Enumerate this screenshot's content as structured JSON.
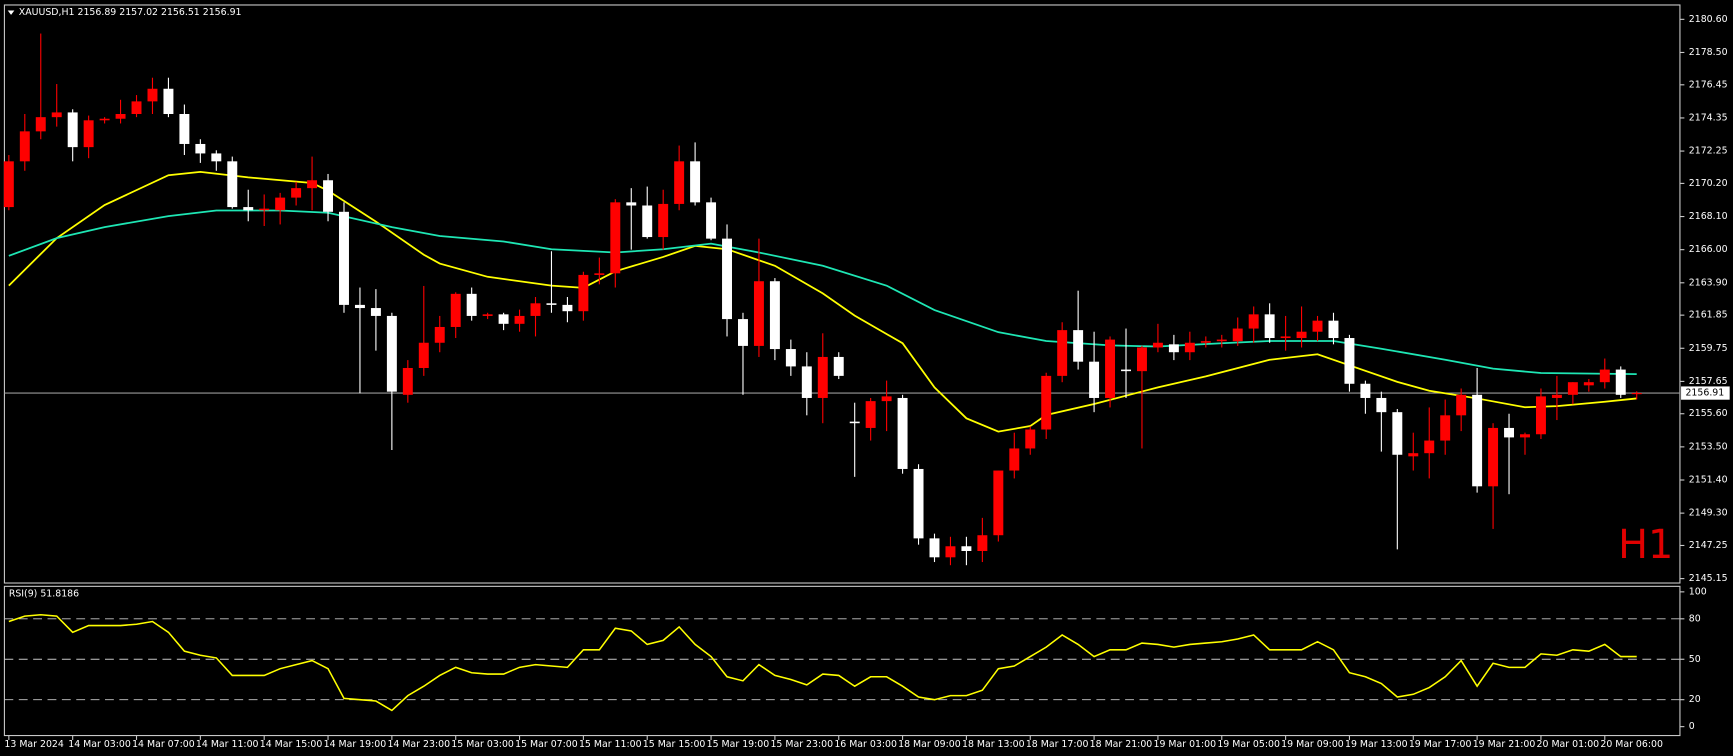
{
  "chart_data": [
    {
      "type": "candlestick",
      "title": "XAUUSD,H1  2156.89 2157.02 2156.51 2156.91",
      "timeframe_label": "H1",
      "categories": [
        "13 Mar 2024",
        null,
        null,
        null,
        "14 Mar 03:00",
        null,
        null,
        null,
        "14 Mar 07:00",
        null,
        null,
        null,
        "14 Mar 11:00",
        null,
        null,
        null,
        "14 Mar 15:00",
        null,
        null,
        null,
        "14 Mar 19:00",
        null,
        null,
        null,
        "14 Mar 23:00",
        null,
        null,
        null,
        "15 Mar 03:00",
        null,
        null,
        null,
        "15 Mar 07:00",
        null,
        null,
        null,
        "15 Mar 11:00",
        null,
        null,
        null,
        "15 Mar 15:00",
        null,
        null,
        null,
        "15 Mar 19:00",
        null,
        null,
        null,
        "15 Mar 23:00",
        null,
        null,
        null,
        "16 Mar 03:00",
        null,
        null,
        null,
        "18 Mar 09:00",
        null,
        null,
        null,
        "18 Mar 13:00",
        null,
        null,
        null,
        "18 Mar 17:00",
        null,
        null,
        null,
        "18 Mar 21:00",
        null,
        null,
        null,
        "19 Mar 01:00",
        null,
        null,
        null,
        "19 Mar 05:00",
        null,
        null,
        null,
        "19 Mar 09:00",
        null,
        null,
        null,
        "19 Mar 13:00",
        null,
        null,
        null,
        "19 Mar 17:00",
        null,
        null,
        null,
        "19 Mar 21:00",
        null,
        null,
        null,
        "20 Mar 01:00",
        null,
        null,
        null,
        "20 Mar 06:00",
        null,
        null
      ],
      "open": [
        2168.7,
        2171.6,
        2173.5,
        2174.4,
        2174.7,
        2172.5,
        2174.2,
        2174.3,
        2174.6,
        2175.4,
        2176.2,
        2174.6,
        2172.7,
        2172.1,
        2171.6,
        2168.7,
        2168.5,
        2168.5,
        2169.3,
        2169.9,
        2170.4,
        2168.4,
        2162.5,
        2162.3,
        2161.8,
        2156.8,
        2158.5,
        2160.1,
        2161.1,
        2163.2,
        2161.8,
        2161.9,
        2161.3,
        2161.8,
        2162.6,
        2162.5,
        2162.1,
        2164.4,
        2164.5,
        2169.0,
        2168.8,
        2166.8,
        2168.9,
        2171.6,
        2169.0,
        2166.7,
        2161.6,
        2159.9,
        2164.0,
        2159.7,
        2158.6,
        2156.6,
        2159.2,
        2155.1,
        2154.7,
        2156.4,
        2156.6,
        2152.1,
        2147.7,
        2146.5,
        2147.2,
        2146.9,
        2147.9,
        2152.0,
        2153.4,
        2154.6,
        2158.0,
        2160.9,
        2158.9,
        2156.6,
        2158.4,
        2158.3,
        2159.8,
        2160.0,
        2159.5,
        2160.1,
        2160.2,
        2160.2,
        2161.0,
        2161.9,
        2160.4,
        2160.4,
        2160.8,
        2161.5,
        2160.4,
        2157.5,
        2156.6,
        2155.7,
        2152.9,
        2153.1,
        2153.9,
        2155.5,
        2156.8,
        2151.0,
        2154.7,
        2154.1,
        2154.3,
        2156.6,
        2156.8,
        2157.4,
        2157.6,
        2158.4,
        2156.89
      ],
      "high": [
        2172.0,
        2174.6,
        2179.7,
        2176.5,
        2174.9,
        2174.5,
        2174.4,
        2175.5,
        2175.8,
        2176.9,
        2176.9,
        2175.2,
        2173.0,
        2172.3,
        2171.9,
        2169.8,
        2169.5,
        2169.6,
        2170.3,
        2171.9,
        2170.8,
        2169.0,
        2163.6,
        2163.5,
        2162.0,
        2159.0,
        2163.7,
        2161.8,
        2163.3,
        2163.6,
        2162.0,
        2162.0,
        2162.2,
        2163.0,
        2165.9,
        2163.0,
        2164.6,
        2165.5,
        2169.2,
        2169.9,
        2170.0,
        2169.8,
        2172.6,
        2172.8,
        2169.3,
        2167.6,
        2162.0,
        2166.7,
        2164.2,
        2160.3,
        2159.5,
        2160.7,
        2159.5,
        2156.3,
        2156.6,
        2157.7,
        2156.8,
        2152.4,
        2148.0,
        2147.8,
        2147.8,
        2149.0,
        2152.0,
        2154.4,
        2154.8,
        2158.2,
        2161.4,
        2163.4,
        2160.8,
        2160.5,
        2161.0,
        2159.9,
        2161.3,
        2160.6,
        2160.8,
        2160.5,
        2160.6,
        2161.7,
        2162.4,
        2162.6,
        2161.8,
        2162.4,
        2161.8,
        2162.0,
        2160.6,
        2157.7,
        2157.0,
        2155.9,
        2154.4,
        2156.0,
        2156.5,
        2157.2,
        2158.5,
        2155.0,
        2155.6,
        2154.4,
        2157.2,
        2158.0,
        2157.6,
        2157.8,
        2159.1,
        2158.6,
        2157.02
      ],
      "low": [
        2168.5,
        2171.0,
        2173.0,
        2173.8,
        2171.6,
        2171.8,
        2174.0,
        2174.0,
        2174.4,
        2174.6,
        2174.4,
        2172.0,
        2171.5,
        2171.0,
        2168.6,
        2167.8,
        2167.5,
        2167.6,
        2168.8,
        2168.5,
        2167.8,
        2162.0,
        2156.9,
        2159.6,
        2153.3,
        2156.3,
        2158.0,
        2159.5,
        2160.4,
        2161.5,
        2161.6,
        2160.9,
        2160.8,
        2160.5,
        2162.0,
        2161.4,
        2161.5,
        2163.8,
        2163.6,
        2166.0,
        2166.7,
        2166.0,
        2168.5,
        2168.8,
        2166.6,
        2160.5,
        2156.8,
        2159.2,
        2159.0,
        2158.0,
        2155.5,
        2155.0,
        2157.8,
        2151.6,
        2153.9,
        2154.5,
        2151.8,
        2147.3,
        2146.2,
        2146.0,
        2146.0,
        2146.2,
        2147.5,
        2151.5,
        2153.0,
        2154.0,
        2157.6,
        2158.4,
        2155.7,
        2156.0,
        2156.6,
        2153.4,
        2159.5,
        2159.0,
        2159.0,
        2159.8,
        2159.8,
        2159.9,
        2160.1,
        2160.1,
        2159.6,
        2159.8,
        2160.2,
        2160.0,
        2157.0,
        2155.6,
        2153.2,
        2147.0,
        2152.0,
        2151.5,
        2153.0,
        2154.5,
        2150.6,
        2148.3,
        2150.5,
        2153.0,
        2154.0,
        2155.2,
        2156.2,
        2157.0,
        2157.2,
        2156.6,
        2156.51
      ],
      "close": [
        2171.6,
        2173.5,
        2174.4,
        2174.7,
        2172.5,
        2174.2,
        2174.3,
        2174.6,
        2175.4,
        2176.2,
        2174.6,
        2172.7,
        2172.1,
        2171.6,
        2168.7,
        2168.5,
        2168.6,
        2169.3,
        2169.9,
        2170.4,
        2168.4,
        2162.5,
        2162.3,
        2161.8,
        2157.0,
        2158.5,
        2160.1,
        2161.1,
        2163.2,
        2161.8,
        2161.9,
        2161.3,
        2161.8,
        2162.6,
        2162.5,
        2162.1,
        2164.4,
        2164.5,
        2169.0,
        2168.8,
        2166.8,
        2168.9,
        2171.6,
        2169.0,
        2166.7,
        2161.6,
        2159.9,
        2164.0,
        2159.7,
        2158.6,
        2156.6,
        2159.2,
        2158.0,
        2155.0,
        2156.4,
        2156.7,
        2152.1,
        2147.7,
        2146.5,
        2147.2,
        2146.9,
        2147.9,
        2152.0,
        2153.4,
        2154.6,
        2158.0,
        2160.9,
        2158.9,
        2156.6,
        2160.3,
        2158.3,
        2159.8,
        2160.1,
        2159.5,
        2160.1,
        2160.2,
        2160.3,
        2161.0,
        2161.9,
        2160.4,
        2160.5,
        2160.8,
        2161.5,
        2160.4,
        2157.5,
        2156.6,
        2155.7,
        2153.0,
        2153.1,
        2153.9,
        2155.5,
        2156.8,
        2151.0,
        2154.7,
        2154.1,
        2154.3,
        2156.7,
        2156.8,
        2157.6,
        2157.6,
        2158.4,
        2156.8,
        2156.91
      ],
      "up_color": "#ff0000",
      "down_color": "#ffffff",
      "overlays": [
        {
          "color": "#ffff00",
          "x": [
            0,
            3,
            6,
            10,
            12,
            15,
            19,
            20,
            23,
            26,
            27,
            30,
            34,
            36,
            38,
            41,
            43,
            45,
            48,
            51,
            53,
            56,
            58,
            60,
            62,
            64,
            65,
            68,
            72,
            75,
            79,
            82,
            84,
            87,
            89,
            92,
            95,
            97,
            100,
            102
          ],
          "values": [
            2163.72,
            2166.73,
            2168.83,
            2170.72,
            2170.93,
            2170.58,
            2170.23,
            2169.74,
            2167.78,
            2165.68,
            2165.12,
            2164.28,
            2163.72,
            2163.58,
            2164.63,
            2165.54,
            2166.24,
            2166.03,
            2164.98,
            2163.23,
            2161.82,
            2160.07,
            2157.27,
            2155.31,
            2154.47,
            2154.82,
            2155.52,
            2156.22,
            2157.27,
            2157.97,
            2159.02,
            2159.37,
            2158.67,
            2157.62,
            2157.06,
            2156.57,
            2156.01,
            2156.08,
            2156.36,
            2156.57
          ]
        },
        {
          "color": "#1ee6b4",
          "x": [
            0,
            3,
            6,
            10,
            13,
            17,
            20,
            24,
            27,
            31,
            34,
            38,
            41,
            44,
            47,
            51,
            55,
            58,
            62,
            65,
            69,
            72,
            76,
            79,
            83,
            86,
            90,
            93,
            96,
            102
          ],
          "values": [
            2165.61,
            2166.73,
            2167.43,
            2168.13,
            2168.48,
            2168.48,
            2168.34,
            2167.43,
            2166.87,
            2166.52,
            2166.03,
            2165.82,
            2166.03,
            2166.38,
            2165.82,
            2164.98,
            2163.72,
            2162.17,
            2160.77,
            2160.21,
            2159.93,
            2159.86,
            2160.07,
            2160.21,
            2160.21,
            2159.72,
            2159.02,
            2158.46,
            2158.18,
            2158.11
          ]
        }
      ],
      "last_price": 2156.91,
      "ylim": [
        2144.87,
        2181.51
      ],
      "yticks": [
        {
          "value": 2180.6,
          "label": "2180.60"
        },
        {
          "value": 2178.5,
          "label": "2178.50"
        },
        {
          "value": 2176.45,
          "label": "2176.45"
        },
        {
          "value": 2174.35,
          "label": "2174.35"
        },
        {
          "value": 2172.25,
          "label": "2172.25"
        },
        {
          "value": 2170.2,
          "label": "2170.20"
        },
        {
          "value": 2168.1,
          "label": "2168.10"
        },
        {
          "value": 2166,
          "label": "2166.00"
        },
        {
          "value": 2163.9,
          "label": "2163.90"
        },
        {
          "value": 2161.85,
          "label": "2161.85"
        },
        {
          "value": 2159.75,
          "label": "2159.75"
        },
        {
          "value": 2157.65,
          "label": "2157.65"
        },
        {
          "value": 2155.6,
          "label": "2155.60"
        },
        {
          "value": 2153.5,
          "label": "2153.50"
        },
        {
          "value": 2151.4,
          "label": "2151.40"
        },
        {
          "value": 2149.3,
          "label": "2149.30"
        },
        {
          "value": 2147.25,
          "label": "2147.25"
        },
        {
          "value": 2145.15,
          "label": "2145.15"
        }
      ]
    },
    {
      "type": "line",
      "title": "RSI(9) 51.8186",
      "values": [
        78,
        82,
        83,
        82,
        70,
        75,
        75,
        75,
        76,
        78,
        70,
        56,
        53,
        51,
        38,
        38,
        38,
        43,
        46,
        49,
        43,
        21,
        20,
        19,
        12,
        23,
        30,
        38,
        44,
        40,
        39,
        39,
        44,
        46,
        45,
        44,
        57,
        57,
        73,
        71,
        61,
        64,
        74,
        61,
        52,
        37,
        34,
        46,
        38,
        35,
        31,
        39,
        38,
        30,
        37,
        37,
        30,
        22,
        20,
        23,
        23,
        27,
        43,
        45,
        52,
        59,
        68,
        61,
        52,
        57,
        57,
        62,
        61,
        59,
        61,
        62,
        63,
        65,
        68,
        57,
        57,
        57,
        63,
        57,
        40,
        37,
        32,
        22,
        24,
        29,
        37,
        49,
        30,
        47,
        44,
        44,
        54,
        53,
        57,
        56,
        61,
        52,
        52
      ],
      "color": "#ffff00",
      "ylim": [
        -6.6,
        104.1
      ],
      "yticks": [
        100,
        80,
        50,
        20,
        0
      ]
    }
  ]
}
